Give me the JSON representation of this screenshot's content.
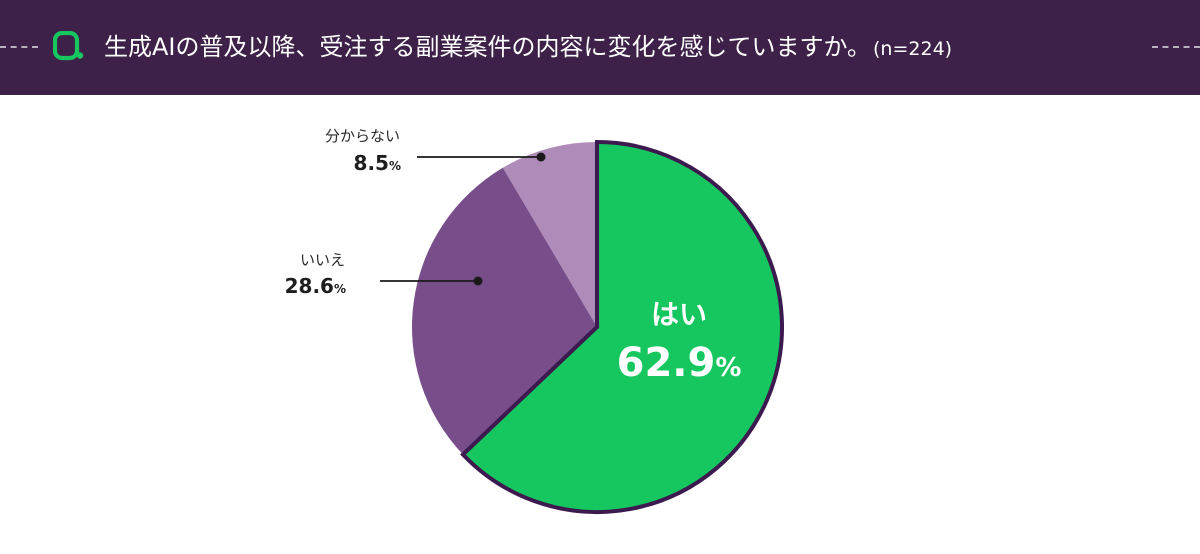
{
  "header": {
    "title": "生成AIの普及以降、受注する副業案件の内容に変化を感じていますか。",
    "sample": "(n=224)",
    "logo_icon": "q-logo-icon",
    "background_color": "#3e2149",
    "logo_color": "#16c75f"
  },
  "chart_data": {
    "type": "pie",
    "title": "生成AIの普及以降、受注する副業案件の内容に変化を感じていますか。",
    "unit": "%",
    "start_angle_deg": 0,
    "direction": "clockwise",
    "slices": [
      {
        "label": "はい",
        "value": 62.9,
        "value_text": "62.9",
        "color": "#16c75f"
      },
      {
        "label": "いいえ",
        "value": 28.6,
        "value_text": "28.6",
        "color": "#774d8a"
      },
      {
        "label": "分からない",
        "value": 8.5,
        "value_text": "8.5",
        "color": "#ae8bb8"
      }
    ],
    "outline_color": "#3c1a4f"
  }
}
